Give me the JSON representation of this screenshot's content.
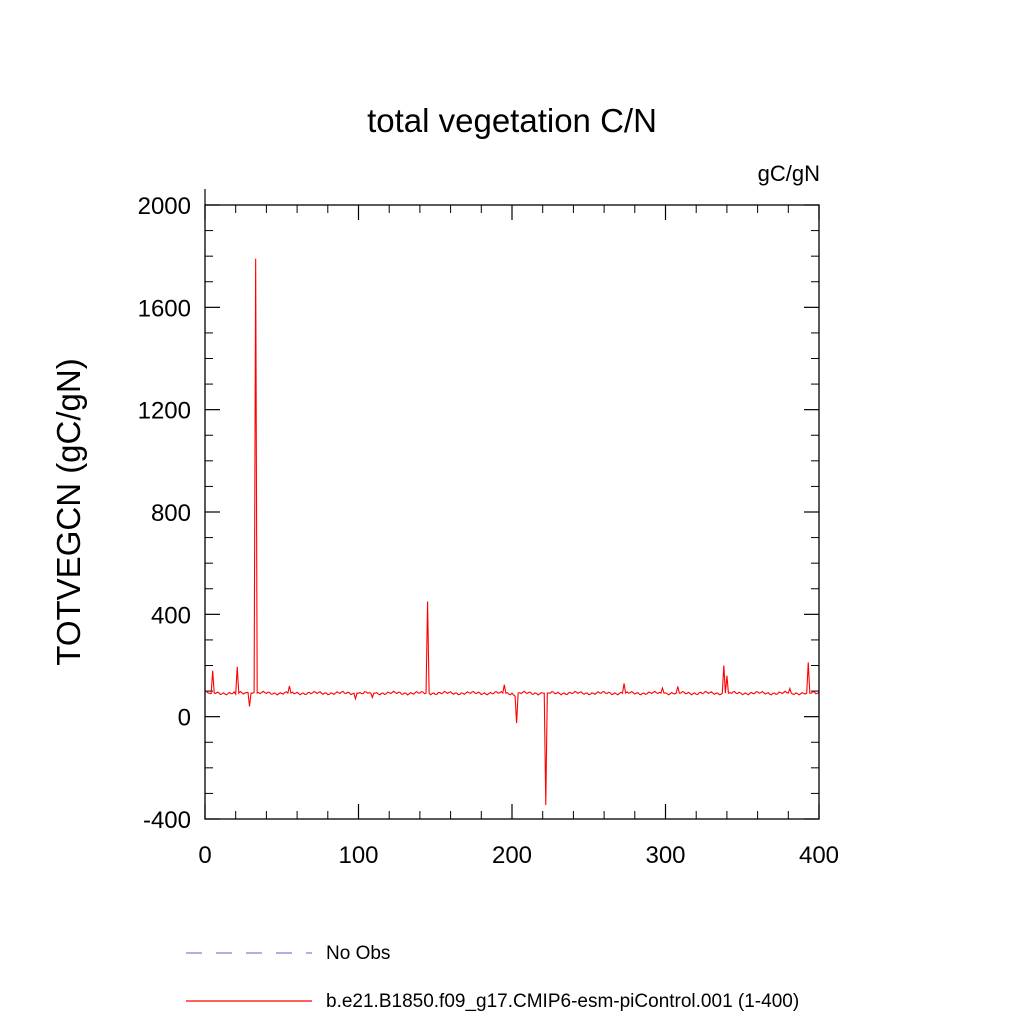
{
  "chart_data": {
    "type": "line",
    "title": "total vegetation C/N",
    "units": "gC/gN",
    "xlabel": "",
    "ylabel": "TOTVEGCN  (gC/gN)",
    "xlim": [
      0,
      400
    ],
    "ylim": [
      -400,
      2000
    ],
    "xticks": [
      0,
      100,
      200,
      300,
      400
    ],
    "xtick_labels": [
      "0",
      "100",
      "200",
      "300",
      "400"
    ],
    "yticks": [
      -400,
      0,
      400,
      800,
      1200,
      1600,
      2000
    ],
    "ytick_labels": [
      "-400",
      "0",
      "400",
      "800",
      "1200",
      "1600",
      "2000"
    ],
    "grid": false,
    "legend_position": "bottom",
    "series": [
      {
        "name": "No Obs",
        "style": "dashed",
        "color": "#7f7fd0",
        "values": []
      },
      {
        "name": "b.e21.B1850.f09_g17.CMIP6-esm-piControl.001 (1-400)",
        "style": "solid",
        "color": "#ff0000",
        "baseline": 92,
        "x_range": [
          1,
          400
        ],
        "spikes": [
          [
            4,
            90
          ],
          [
            5,
            180
          ],
          [
            6,
            92
          ],
          [
            20,
            88
          ],
          [
            21,
            195
          ],
          [
            22,
            92
          ],
          [
            28,
            95
          ],
          [
            29,
            40
          ],
          [
            30,
            92
          ],
          [
            32,
            95
          ],
          [
            33,
            1790
          ],
          [
            34,
            92
          ],
          [
            54,
            92
          ],
          [
            55,
            120
          ],
          [
            56,
            92
          ],
          [
            97,
            92
          ],
          [
            98,
            70
          ],
          [
            99,
            92
          ],
          [
            108,
            92
          ],
          [
            109,
            75
          ],
          [
            110,
            92
          ],
          [
            144,
            92
          ],
          [
            145,
            450
          ],
          [
            146,
            92
          ],
          [
            194,
            92
          ],
          [
            195,
            125
          ],
          [
            196,
            92
          ],
          [
            200,
            92
          ],
          [
            201,
            85
          ],
          [
            202,
            80
          ],
          [
            203,
            -25
          ],
          [
            204,
            92
          ],
          [
            220,
            92
          ],
          [
            221,
            92
          ],
          [
            222,
            -345
          ],
          [
            223,
            92
          ],
          [
            272,
            92
          ],
          [
            273,
            130
          ],
          [
            274,
            92
          ],
          [
            297,
            92
          ],
          [
            298,
            112
          ],
          [
            299,
            92
          ],
          [
            307,
            92
          ],
          [
            308,
            118
          ],
          [
            309,
            92
          ],
          [
            337,
            92
          ],
          [
            338,
            200
          ],
          [
            339,
            92
          ],
          [
            340,
            160
          ],
          [
            341,
            92
          ],
          [
            380,
            92
          ],
          [
            381,
            110
          ],
          [
            382,
            92
          ],
          [
            392,
            92
          ],
          [
            393,
            212
          ],
          [
            394,
            92
          ]
        ]
      }
    ]
  }
}
